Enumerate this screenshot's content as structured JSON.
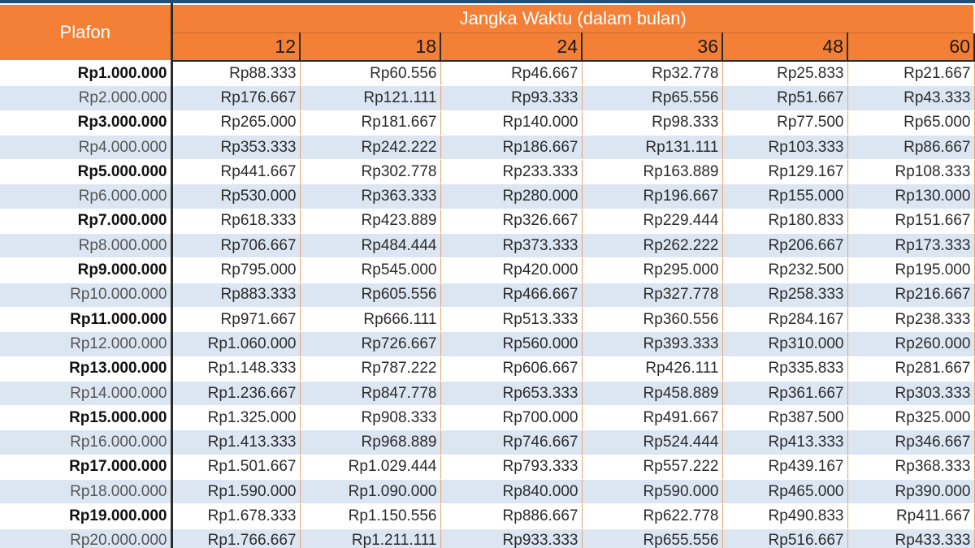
{
  "table": {
    "plafon_header": "Plafon",
    "term_group_header": "Jangka Waktu (dalam bulan)",
    "terms": [
      "12",
      "18",
      "24",
      "36",
      "48",
      "60"
    ],
    "rows": [
      {
        "plafon": "Rp1.000.000",
        "values": [
          "Rp88.333",
          "Rp60.556",
          "Rp46.667",
          "Rp32.778",
          "Rp25.833",
          "Rp21.667"
        ]
      },
      {
        "plafon": "Rp2.000.000",
        "values": [
          "Rp176.667",
          "Rp121.111",
          "Rp93.333",
          "Rp65.556",
          "Rp51.667",
          "Rp43.333"
        ]
      },
      {
        "plafon": "Rp3.000.000",
        "values": [
          "Rp265.000",
          "Rp181.667",
          "Rp140.000",
          "Rp98.333",
          "Rp77.500",
          "Rp65.000"
        ]
      },
      {
        "plafon": "Rp4.000.000",
        "values": [
          "Rp353.333",
          "Rp242.222",
          "Rp186.667",
          "Rp131.111",
          "Rp103.333",
          "Rp86.667"
        ]
      },
      {
        "plafon": "Rp5.000.000",
        "values": [
          "Rp441.667",
          "Rp302.778",
          "Rp233.333",
          "Rp163.889",
          "Rp129.167",
          "Rp108.333"
        ]
      },
      {
        "plafon": "Rp6.000.000",
        "values": [
          "Rp530.000",
          "Rp363.333",
          "Rp280.000",
          "Rp196.667",
          "Rp155.000",
          "Rp130.000"
        ]
      },
      {
        "plafon": "Rp7.000.000",
        "values": [
          "Rp618.333",
          "Rp423.889",
          "Rp326.667",
          "Rp229.444",
          "Rp180.833",
          "Rp151.667"
        ]
      },
      {
        "plafon": "Rp8.000.000",
        "values": [
          "Rp706.667",
          "Rp484.444",
          "Rp373.333",
          "Rp262.222",
          "Rp206.667",
          "Rp173.333"
        ]
      },
      {
        "plafon": "Rp9.000.000",
        "values": [
          "Rp795.000",
          "Rp545.000",
          "Rp420.000",
          "Rp295.000",
          "Rp232.500",
          "Rp195.000"
        ]
      },
      {
        "plafon": "Rp10.000.000",
        "values": [
          "Rp883.333",
          "Rp605.556",
          "Rp466.667",
          "Rp327.778",
          "Rp258.333",
          "Rp216.667"
        ]
      },
      {
        "plafon": "Rp11.000.000",
        "values": [
          "Rp971.667",
          "Rp666.111",
          "Rp513.333",
          "Rp360.556",
          "Rp284.167",
          "Rp238.333"
        ]
      },
      {
        "plafon": "Rp12.000.000",
        "values": [
          "Rp1.060.000",
          "Rp726.667",
          "Rp560.000",
          "Rp393.333",
          "Rp310.000",
          "Rp260.000"
        ]
      },
      {
        "plafon": "Rp13.000.000",
        "values": [
          "Rp1.148.333",
          "Rp787.222",
          "Rp606.667",
          "Rp426.111",
          "Rp335.833",
          "Rp281.667"
        ]
      },
      {
        "plafon": "Rp14.000.000",
        "values": [
          "Rp1.236.667",
          "Rp847.778",
          "Rp653.333",
          "Rp458.889",
          "Rp361.667",
          "Rp303.333"
        ]
      },
      {
        "plafon": "Rp15.000.000",
        "values": [
          "Rp1.325.000",
          "Rp908.333",
          "Rp700.000",
          "Rp491.667",
          "Rp387.500",
          "Rp325.000"
        ]
      },
      {
        "plafon": "Rp16.000.000",
        "values": [
          "Rp1.413.333",
          "Rp968.889",
          "Rp746.667",
          "Rp524.444",
          "Rp413.333",
          "Rp346.667"
        ]
      },
      {
        "plafon": "Rp17.000.000",
        "values": [
          "Rp1.501.667",
          "Rp1.029.444",
          "Rp793.333",
          "Rp557.222",
          "Rp439.167",
          "Rp368.333"
        ]
      },
      {
        "plafon": "Rp18.000.000",
        "values": [
          "Rp1.590.000",
          "Rp1.090.000",
          "Rp840.000",
          "Rp590.000",
          "Rp465.000",
          "Rp390.000"
        ]
      },
      {
        "plafon": "Rp19.000.000",
        "values": [
          "Rp1.678.333",
          "Rp1.150.556",
          "Rp886.667",
          "Rp622.778",
          "Rp490.833",
          "Rp411.667"
        ]
      },
      {
        "plafon": "Rp20.000.000",
        "values": [
          "Rp1.766.667",
          "Rp1.211.111",
          "Rp933.333",
          "Rp655.556",
          "Rp516.667",
          "Rp433.333"
        ]
      }
    ]
  },
  "colors": {
    "header_orange": "#f47f36",
    "row_band_blue": "#dce6f2",
    "row_white": "#ffffff"
  }
}
